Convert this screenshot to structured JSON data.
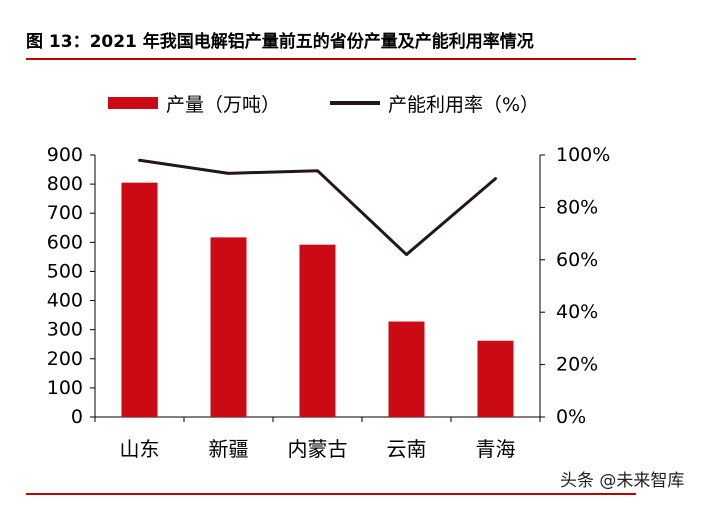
{
  "header": {
    "title": "图 13：2021 年我国电解铝产量前五的省份产量及产能利用率情况"
  },
  "legend": {
    "bar_label": "产量（万吨）",
    "line_label": "产能利用率（%）"
  },
  "watermark": {
    "text": "头条 @未来智库"
  },
  "colors": {
    "bar": "#cc0a15",
    "line": "#231815",
    "accent_rule": "#c00000"
  },
  "chart_data": {
    "type": "bar",
    "title": "图 13：2021 年我国电解铝产量前五的省份产量及产能利用率情况",
    "categories": [
      "山东",
      "新疆",
      "内蒙古",
      "云南",
      "青海"
    ],
    "series": [
      {
        "name": "产量（万吨）",
        "type": "bar",
        "axis": "left",
        "values": [
          805,
          617,
          592,
          328,
          262
        ]
      },
      {
        "name": "产能利用率（%）",
        "type": "line",
        "axis": "right",
        "values": [
          98,
          93,
          94,
          62,
          91
        ]
      }
    ],
    "y_left": {
      "min": 0,
      "max": 900,
      "step": 100,
      "ticks": [
        "0",
        "100",
        "200",
        "300",
        "400",
        "500",
        "600",
        "700",
        "800",
        "900"
      ]
    },
    "y_right": {
      "min": 0,
      "max": 100,
      "step": 20,
      "ticks": [
        "0%",
        "20%",
        "40%",
        "60%",
        "80%",
        "100%"
      ]
    },
    "legend_position": "top",
    "grid": false
  }
}
